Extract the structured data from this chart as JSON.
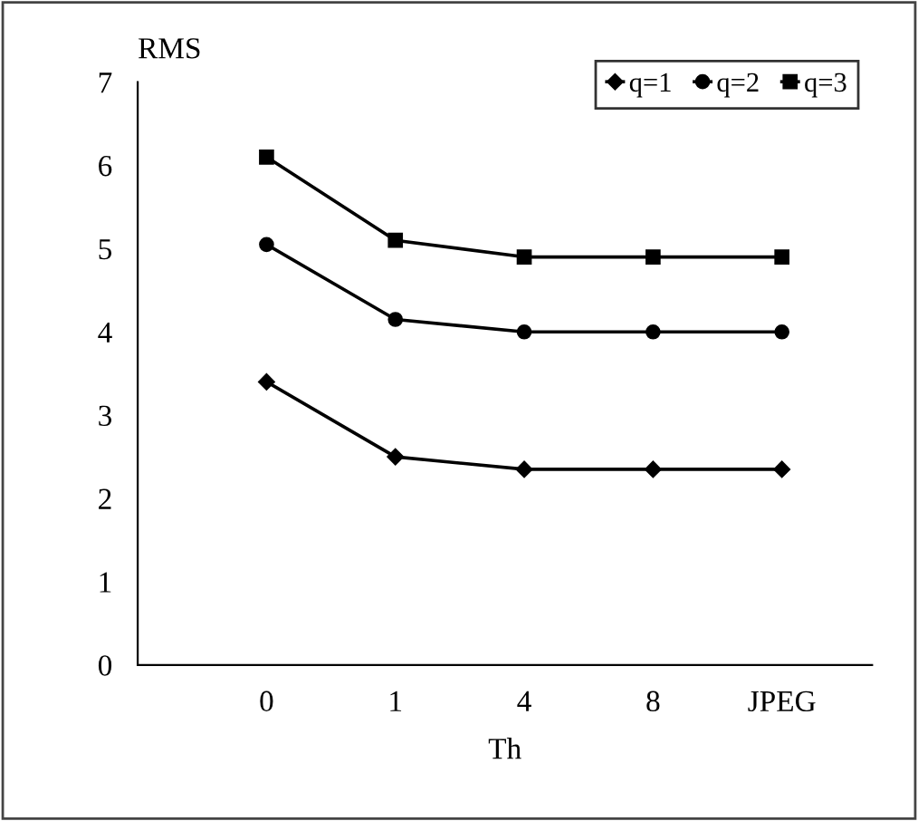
{
  "chart_data": {
    "type": "line",
    "xlabel": "Th",
    "ylabel": "RMS",
    "categories": [
      "0",
      "1",
      "4",
      "8",
      "JPEG"
    ],
    "series": [
      {
        "name": "q=1",
        "color": "#000000",
        "marker": "diamond",
        "values": [
          3.4,
          2.5,
          2.35,
          2.35,
          2.35
        ]
      },
      {
        "name": "q=2",
        "color": "#000000",
        "marker": "circle",
        "values": [
          5.05,
          4.15,
          4.0,
          4.0,
          4.0
        ]
      },
      {
        "name": "q=3",
        "color": "#000000",
        "marker": "square",
        "values": [
          6.1,
          5.1,
          4.9,
          4.9,
          4.9
        ]
      }
    ],
    "ylim": [
      0,
      7
    ],
    "yticks": [
      0,
      1,
      2,
      3,
      4,
      5,
      6,
      7
    ],
    "grid": false,
    "legend": "top right",
    "line_style": "solid"
  }
}
